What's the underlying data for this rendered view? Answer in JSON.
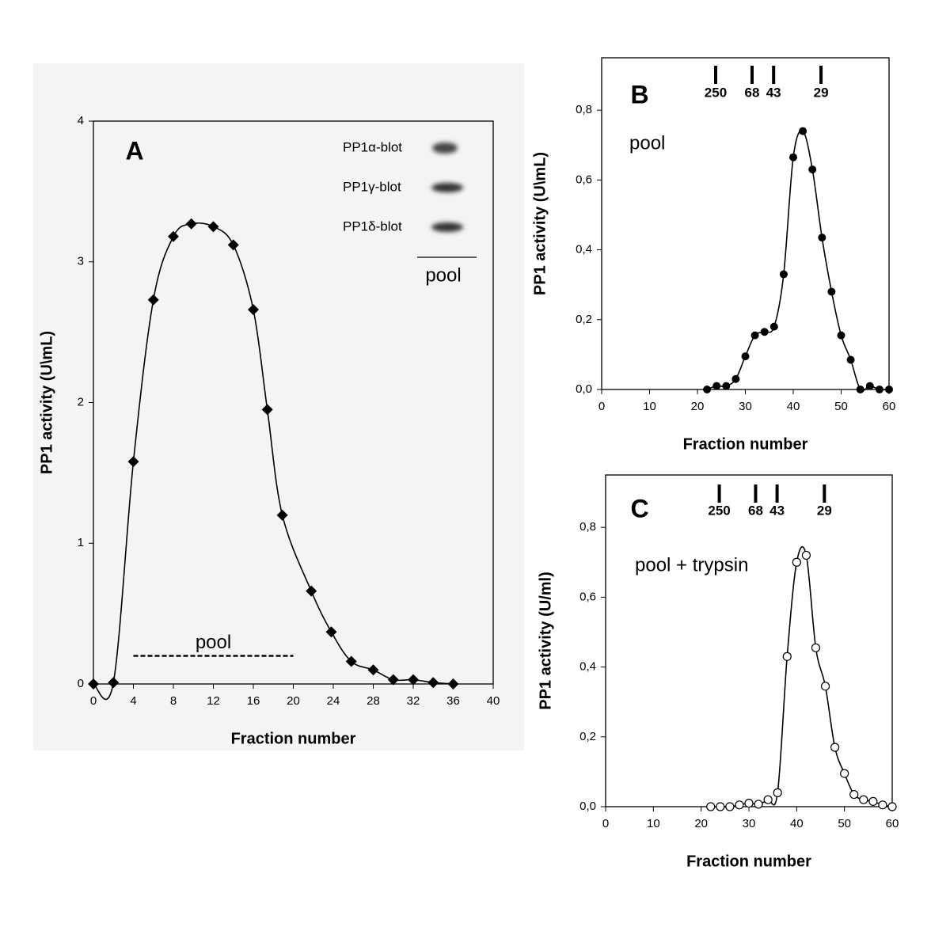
{
  "chart_data": [
    {
      "type": "line",
      "panel_label": "A",
      "x_label": "Fraction number",
      "y_label": "PP1 activity (U\\mL)",
      "x": [
        0,
        2,
        4,
        6,
        8,
        9.8,
        12,
        14,
        16,
        17.4,
        18.9,
        21.8,
        23.8,
        25.8,
        28,
        30,
        32,
        34,
        36
      ],
      "values": [
        0,
        0.01,
        1.58,
        2.73,
        3.18,
        3.27,
        3.25,
        3.12,
        2.66,
        1.95,
        1.2,
        0.66,
        0.37,
        0.16,
        0.1,
        0.03,
        0.03,
        0.01,
        0
      ],
      "color": "#000000",
      "marker": "diamond",
      "xlim": [
        0,
        40
      ],
      "xticks": [
        0,
        4,
        8,
        12,
        16,
        20,
        24,
        28,
        32,
        36,
        40
      ],
      "ylim": [
        0,
        4
      ],
      "yticks": [
        0,
        1,
        2,
        3,
        4
      ],
      "blots": [
        "PP1α-blot",
        "PP1γ-blot",
        "PP1δ-blot"
      ],
      "blot_caption": "pool",
      "pool_range": {
        "label": "pool",
        "x": [
          4,
          20
        ],
        "y": 0.2
      }
    },
    {
      "type": "line",
      "panel_label": "B",
      "annotation": "pool",
      "x_label": "Fraction number",
      "y_label": "PP1 activity (U\\mL)",
      "x": [
        22,
        24,
        26,
        28,
        30,
        32,
        34,
        36,
        38,
        40,
        42,
        44,
        46,
        48,
        50,
        52,
        54,
        56,
        58,
        60
      ],
      "values": [
        0,
        0.01,
        0.01,
        0.03,
        0.095,
        0.155,
        0.165,
        0.18,
        0.33,
        0.665,
        0.74,
        0.63,
        0.435,
        0.28,
        0.155,
        0.085,
        0,
        0.01,
        0,
        0
      ],
      "color": "#000000",
      "marker": "circle",
      "xlim": [
        0,
        60
      ],
      "xticks": [
        0,
        10,
        20,
        30,
        40,
        50,
        60
      ],
      "ylim": [
        0,
        0.95
      ],
      "yticks": [
        {
          "value": 0,
          "label": "0,0"
        },
        {
          "value": 0.2,
          "label": "0,2"
        },
        {
          "value": 0.4,
          "label": "0,4"
        },
        {
          "value": 0.6,
          "label": "0,6"
        },
        {
          "value": 0.8,
          "label": "0,8"
        }
      ],
      "mw_markers": [
        {
          "label": "250",
          "x": 23.8
        },
        {
          "label": "68",
          "x": 31.4
        },
        {
          "label": "43",
          "x": 35.9
        },
        {
          "label": "29",
          "x": 45.8
        }
      ]
    },
    {
      "type": "line",
      "panel_label": "C",
      "annotation": "pool + trypsin",
      "x_label": "Fraction number",
      "y_label": "PP1 activity (U/ml)",
      "x": [
        22,
        24,
        26,
        28,
        30,
        32,
        34,
        36,
        38,
        40,
        42,
        44,
        46,
        48,
        50,
        52,
        54,
        56,
        58,
        60
      ],
      "values": [
        0,
        0,
        0,
        0.005,
        0.01,
        0.007,
        0.02,
        0.04,
        0.43,
        0.7,
        0.72,
        0.455,
        0.345,
        0.17,
        0.095,
        0.035,
        0.02,
        0.015,
        0.005,
        0
      ],
      "color": "#000000",
      "marker": "open-circle",
      "xlim": [
        0,
        60
      ],
      "xticks": [
        0,
        10,
        20,
        30,
        40,
        50,
        60
      ],
      "ylim": [
        0,
        0.95
      ],
      "yticks": [
        {
          "value": 0,
          "label": "0,0"
        },
        {
          "value": 0.2,
          "label": "0,2"
        },
        {
          "value": 0.4,
          "label": "0,4"
        },
        {
          "value": 0.6,
          "label": "0,6"
        },
        {
          "value": 0.8,
          "label": "0,8"
        }
      ],
      "mw_markers": [
        {
          "label": "250",
          "x": 23.8
        },
        {
          "label": "68",
          "x": 31.4
        },
        {
          "label": "43",
          "x": 35.9
        },
        {
          "label": "29",
          "x": 45.8
        }
      ]
    }
  ]
}
